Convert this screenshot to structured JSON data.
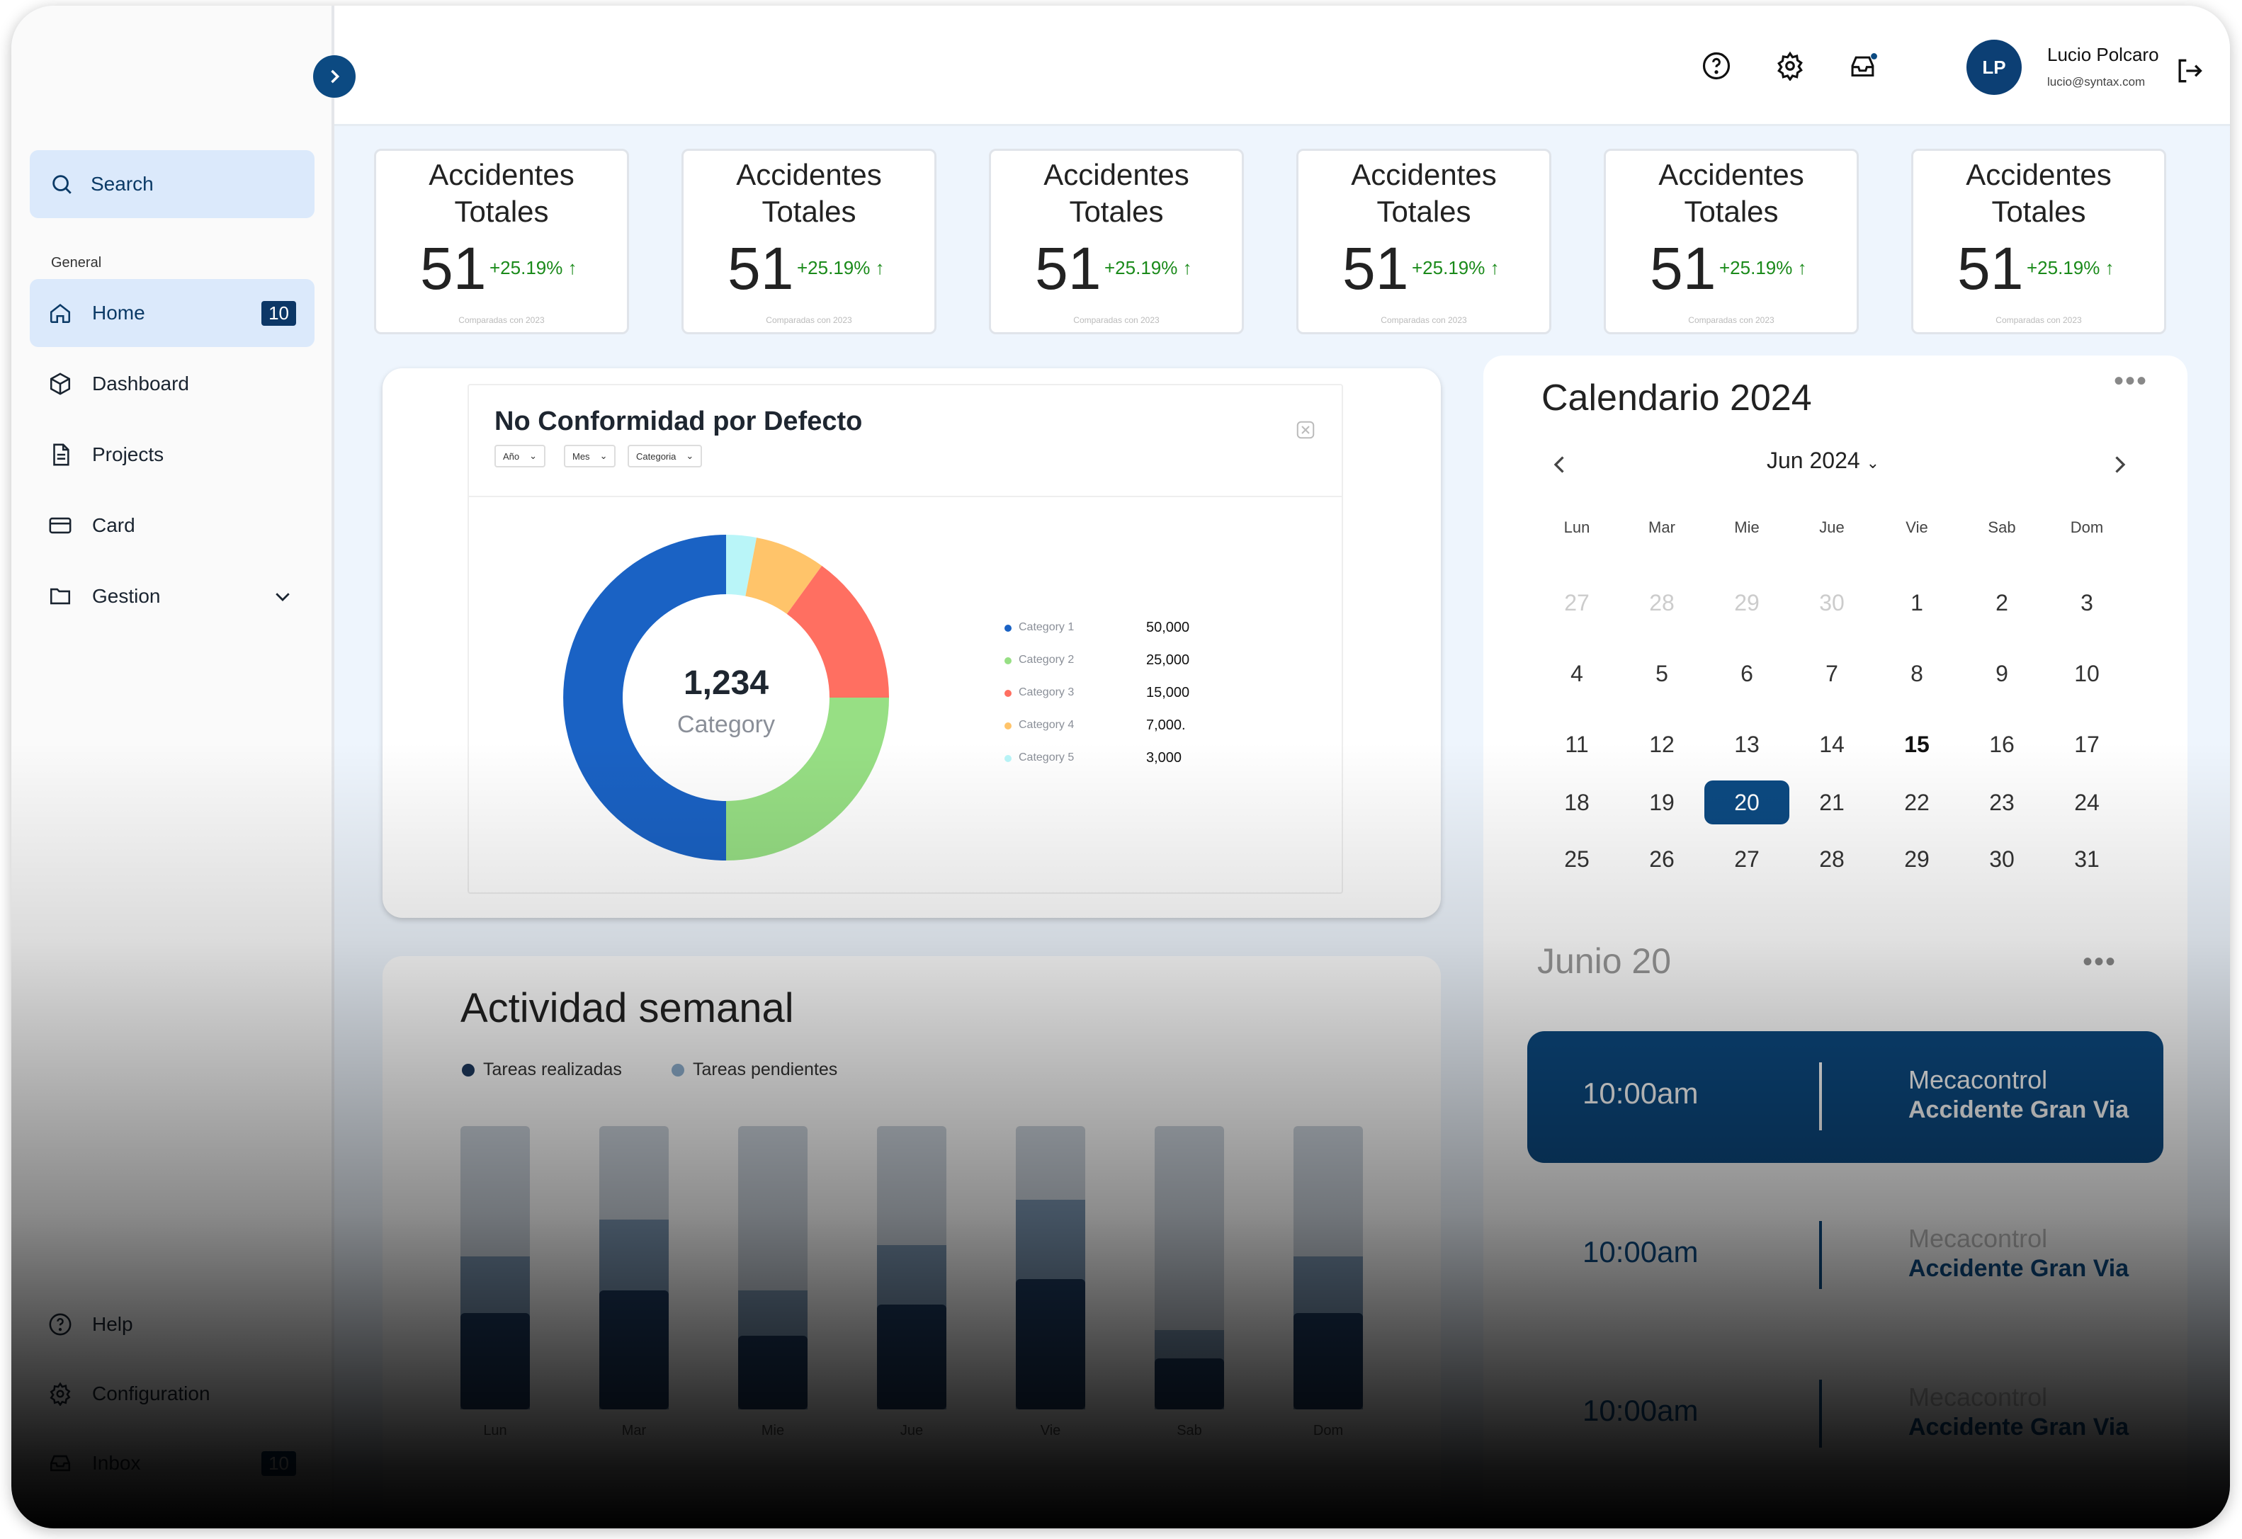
{
  "sidebar": {
    "search_label": "Search",
    "section_label": "General",
    "items": [
      {
        "label": "Home",
        "badge": "10",
        "icon": "home-icon"
      },
      {
        "label": "Dashboard",
        "icon": "cube-icon"
      },
      {
        "label": "Projects",
        "icon": "document-icon"
      },
      {
        "label": "Card",
        "icon": "credit-card-icon"
      },
      {
        "label": "Gestion",
        "icon": "folder-icon"
      }
    ],
    "bottom_items": [
      {
        "label": "Help",
        "icon": "help-icon"
      },
      {
        "label": "Configuration",
        "icon": "gear-icon"
      },
      {
        "label": "Inbox",
        "badge": "10",
        "icon": "inbox-icon"
      }
    ]
  },
  "user": {
    "initials": "LP",
    "name": "Lucio Polcaro",
    "email": "lucio@syntax.com"
  },
  "kpis": [
    {
      "title": "Accidentes Totales",
      "value": "51",
      "change": "+25.19%",
      "sub": "Comparadas con 2023"
    },
    {
      "title": "Accidentes Totales",
      "value": "51",
      "change": "+25.19%",
      "sub": "Comparadas con 2023"
    },
    {
      "title": "Accidentes Totales",
      "value": "51",
      "change": "+25.19%",
      "sub": "Comparadas con 2023"
    },
    {
      "title": "Accidentes Totales",
      "value": "51",
      "change": "+25.19%",
      "sub": "Comparadas con 2023"
    },
    {
      "title": "Accidentes Totales",
      "value": "51",
      "change": "+25.19%",
      "sub": "Comparadas con 2023"
    },
    {
      "title": "Accidentes Totales",
      "value": "51",
      "change": "+25.19%",
      "sub": "Comparadas con 2023"
    }
  ],
  "nc": {
    "title": "No Conformidad por Defecto",
    "filters": [
      "Año",
      "Mes",
      "Categoria"
    ],
    "center_value": "1,234",
    "center_label": "Category"
  },
  "activity": {
    "title": "Actividad semanal",
    "legend": [
      "Tareas realizadas",
      "Tareas pendientes"
    ],
    "colors": {
      "done": "#1e3a5f",
      "pending": "#7c97b3",
      "rest": "#cdd5de"
    }
  },
  "calendar": {
    "title": "Calendario 2024",
    "month_label": "Jun 2024",
    "weekdays": [
      "Lun",
      "Mar",
      "Mie",
      "Jue",
      "Vie",
      "Sab",
      "Dom"
    ],
    "days": [
      [
        "27",
        "28",
        "29",
        "30",
        "1",
        "2",
        "3"
      ],
      [
        "4",
        "5",
        "6",
        "7",
        "8",
        "9",
        "10"
      ],
      [
        "11",
        "12",
        "13",
        "14",
        "15",
        "16",
        "17"
      ],
      [
        "18",
        "19",
        "20",
        "21",
        "22",
        "23",
        "24"
      ],
      [
        "25",
        "26",
        "27",
        "28",
        "29",
        "30",
        "31"
      ]
    ],
    "today": "15",
    "selected": "20",
    "day_title": "Junio 20",
    "events": [
      {
        "time": "10:00am",
        "org": "Mecacontrol",
        "loc": "Accidente Gran Via"
      },
      {
        "time": "10:00am",
        "org": "Mecacontrol",
        "loc": "Accidente Gran Via"
      },
      {
        "time": "10:00am",
        "org": "Mecacontrol",
        "loc": "Accidente Gran Via"
      }
    ]
  },
  "chart_data": [
    {
      "type": "pie",
      "title": "No Conformidad por Defecto",
      "categories": [
        "Category 1",
        "Category 2",
        "Category 3",
        "Category 4",
        "Category 5"
      ],
      "values": [
        50000,
        25000,
        15000,
        7000,
        3000
      ],
      "value_labels": [
        "50,000",
        "25,000",
        "15,000",
        "7,000.",
        "3,000"
      ],
      "colors": [
        "#1a62c4",
        "#97df84",
        "#ff6f61",
        "#ffc46a",
        "#b9f5f8"
      ],
      "center_value": "1,234",
      "center_label": "Category"
    },
    {
      "type": "bar",
      "title": "Actividad semanal",
      "categories": [
        "Lun",
        "Mar",
        "Mie",
        "Jue",
        "Vie",
        "Sab",
        "Dom"
      ],
      "series": [
        {
          "name": "Tareas realizadas",
          "values": [
            34,
            42,
            26,
            37,
            46,
            18,
            34
          ]
        },
        {
          "name": "Tareas pendientes",
          "values": [
            20,
            25,
            16,
            21,
            28,
            10,
            20
          ]
        }
      ],
      "ylim": [
        0,
        100
      ]
    }
  ]
}
